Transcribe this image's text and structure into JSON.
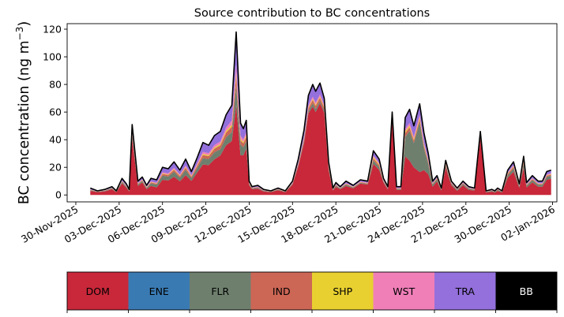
{
  "chart_data": {
    "type": "area",
    "stacked": true,
    "title": "Source contribution to BC concentrations",
    "ylabel_main": "BC concentration (ng m",
    "ylabel_sup": "−3",
    "ylabel_close": ")",
    "xlabel": "",
    "ylim": [
      -5,
      124
    ],
    "yticks": [
      0,
      20,
      40,
      60,
      80,
      100,
      120
    ],
    "xlim": [
      -0.6,
      33.3
    ],
    "xticks": [
      {
        "day": 0,
        "label": "30-Nov-2025"
      },
      {
        "day": 3,
        "label": "03-Dec-2025"
      },
      {
        "day": 6,
        "label": "06-Dec-2025"
      },
      {
        "day": 9,
        "label": "09-Dec-2025"
      },
      {
        "day": 12,
        "label": "12-Dec-2025"
      },
      {
        "day": 15,
        "label": "15-Dec-2025"
      },
      {
        "day": 18,
        "label": "18-Dec-2025"
      },
      {
        "day": 21,
        "label": "21-Dec-2025"
      },
      {
        "day": 24,
        "label": "24-Dec-2025"
      },
      {
        "day": 27,
        "label": "27-Dec-2025"
      },
      {
        "day": 30,
        "label": "30-Dec-2025"
      },
      {
        "day": 33,
        "label": "02-Jan-2026"
      }
    ],
    "x_days": [
      1.0,
      1.5,
      2.0,
      2.5,
      2.8,
      3.2,
      3.5,
      3.7,
      3.9,
      4.3,
      4.6,
      4.9,
      5.2,
      5.6,
      6.0,
      6.4,
      6.8,
      7.2,
      7.6,
      8.0,
      8.4,
      8.8,
      9.2,
      9.6,
      10.0,
      10.4,
      10.8,
      11.1,
      11.4,
      11.6,
      11.8,
      12.0,
      12.2,
      12.6,
      13.0,
      13.5,
      14.0,
      14.5,
      15.0,
      15.4,
      15.8,
      16.1,
      16.4,
      16.6,
      16.9,
      17.2,
      17.5,
      17.8,
      18.0,
      18.3,
      18.7,
      19.2,
      19.7,
      20.2,
      20.6,
      21.0,
      21.3,
      21.6,
      21.9,
      22.2,
      22.5,
      22.8,
      23.1,
      23.4,
      23.8,
      24.1,
      24.4,
      24.7,
      25.0,
      25.3,
      25.6,
      26.0,
      26.4,
      26.8,
      27.2,
      27.6,
      28.0,
      28.4,
      28.8,
      29.0,
      29.2,
      29.5,
      29.9,
      30.3,
      30.7,
      31.0,
      31.2,
      31.6,
      32.0,
      32.3,
      32.6,
      32.9
    ],
    "total": [
      5,
      3,
      4,
      6,
      3,
      12,
      8,
      4,
      51,
      10,
      13,
      7,
      12,
      11,
      20,
      19,
      24,
      18,
      26,
      17,
      27,
      38,
      36,
      43,
      46,
      58,
      65,
      118,
      52,
      48,
      54,
      10,
      6,
      7,
      4,
      3,
      5,
      3,
      10,
      26,
      47,
      72,
      80,
      75,
      81,
      70,
      24,
      5,
      9,
      6,
      10,
      7,
      11,
      10,
      32,
      26,
      12,
      6,
      60,
      6,
      6,
      56,
      62,
      50,
      66,
      45,
      30,
      10,
      14,
      5,
      25,
      10,
      5,
      10,
      6,
      5,
      46,
      3,
      4,
      3,
      5,
      3,
      18,
      24,
      8,
      28,
      9,
      14,
      10,
      10,
      17,
      18
    ],
    "series": [
      {
        "name": "DOM",
        "color": "#c8283a",
        "fractions": [
          0.6,
          0.7,
          0.65,
          0.7,
          0.65,
          0.7,
          0.65,
          0.65,
          0.8,
          0.65,
          0.7,
          0.6,
          0.55,
          0.5,
          0.55,
          0.55,
          0.55,
          0.55,
          0.55,
          0.6,
          0.6,
          0.58,
          0.6,
          0.6,
          0.62,
          0.62,
          0.6,
          0.55,
          0.55,
          0.6,
          0.62,
          0.7,
          0.7,
          0.65,
          0.65,
          0.7,
          0.7,
          0.65,
          0.75,
          0.8,
          0.8,
          0.82,
          0.8,
          0.8,
          0.82,
          0.85,
          0.75,
          0.65,
          0.65,
          0.7,
          0.65,
          0.7,
          0.75,
          0.75,
          0.7,
          0.7,
          0.75,
          0.65,
          0.9,
          0.6,
          0.6,
          0.5,
          0.4,
          0.4,
          0.25,
          0.4,
          0.5,
          0.6,
          0.7,
          0.65,
          0.8,
          0.7,
          0.6,
          0.7,
          0.6,
          0.65,
          0.9,
          0.6,
          0.6,
          0.55,
          0.6,
          0.6,
          0.7,
          0.7,
          0.65,
          0.7,
          0.6,
          0.65,
          0.6,
          0.6,
          0.65,
          0.65
        ]
      },
      {
        "name": "ENE",
        "color": "#3a7ab3",
        "fractions": [
          0.0,
          0.0,
          0.0,
          0.0,
          0.0,
          0.0,
          0.0,
          0.0,
          0.0,
          0.0,
          0.0,
          0.0,
          0.0,
          0.0,
          0.0,
          0.0,
          0.0,
          0.0,
          0.0,
          0.0,
          0.0,
          0.0,
          0.0,
          0.0,
          0.0,
          0.0,
          0.0,
          0.0,
          0.0,
          0.0,
          0.0,
          0.0,
          0.0,
          0.0,
          0.0,
          0.0,
          0.0,
          0.0,
          0.0,
          0.0,
          0.0,
          0.0,
          0.0,
          0.0,
          0.0,
          0.0,
          0.0,
          0.0,
          0.0,
          0.0,
          0.0,
          0.0,
          0.0,
          0.0,
          0.0,
          0.0,
          0.0,
          0.0,
          0.0,
          0.0,
          0.0,
          0.0,
          0.0,
          0.0,
          0.0,
          0.0,
          0.0,
          0.0,
          0.0,
          0.0,
          0.0,
          0.0,
          0.0,
          0.0,
          0.0,
          0.0,
          0.0,
          0.0,
          0.0,
          0.0,
          0.0,
          0.0,
          0.0,
          0.0,
          0.0,
          0.0,
          0.0,
          0.0,
          0.0,
          0.0,
          0.0,
          0.0
        ]
      },
      {
        "name": "FLR",
        "color": "#6e7f6e",
        "fractions": [
          0.1,
          0.08,
          0.1,
          0.08,
          0.1,
          0.08,
          0.1,
          0.1,
          0.05,
          0.1,
          0.08,
          0.12,
          0.15,
          0.18,
          0.15,
          0.15,
          0.15,
          0.15,
          0.15,
          0.12,
          0.12,
          0.12,
          0.12,
          0.12,
          0.1,
          0.1,
          0.1,
          0.12,
          0.15,
          0.12,
          0.1,
          0.08,
          0.08,
          0.1,
          0.1,
          0.08,
          0.08,
          0.1,
          0.05,
          0.03,
          0.03,
          0.02,
          0.03,
          0.03,
          0.02,
          0.02,
          0.05,
          0.1,
          0.1,
          0.08,
          0.1,
          0.08,
          0.05,
          0.05,
          0.08,
          0.08,
          0.05,
          0.1,
          0.02,
          0.12,
          0.12,
          0.25,
          0.35,
          0.35,
          0.55,
          0.35,
          0.25,
          0.15,
          0.1,
          0.12,
          0.05,
          0.1,
          0.15,
          0.1,
          0.15,
          0.12,
          0.02,
          0.15,
          0.15,
          0.18,
          0.15,
          0.15,
          0.1,
          0.1,
          0.12,
          0.1,
          0.15,
          0.12,
          0.15,
          0.15,
          0.12,
          0.12
        ]
      },
      {
        "name": "IND",
        "color": "#cc6655",
        "fractions": [
          0.05,
          0.04,
          0.05,
          0.04,
          0.05,
          0.04,
          0.05,
          0.05,
          0.03,
          0.05,
          0.04,
          0.06,
          0.06,
          0.06,
          0.06,
          0.06,
          0.06,
          0.06,
          0.06,
          0.06,
          0.06,
          0.06,
          0.06,
          0.06,
          0.06,
          0.06,
          0.06,
          0.06,
          0.06,
          0.06,
          0.06,
          0.05,
          0.05,
          0.05,
          0.05,
          0.04,
          0.04,
          0.05,
          0.04,
          0.03,
          0.03,
          0.03,
          0.03,
          0.03,
          0.03,
          0.03,
          0.04,
          0.05,
          0.05,
          0.04,
          0.05,
          0.04,
          0.04,
          0.04,
          0.05,
          0.05,
          0.04,
          0.05,
          0.02,
          0.05,
          0.05,
          0.05,
          0.04,
          0.04,
          0.03,
          0.04,
          0.05,
          0.05,
          0.05,
          0.05,
          0.04,
          0.05,
          0.05,
          0.05,
          0.05,
          0.05,
          0.02,
          0.05,
          0.05,
          0.05,
          0.05,
          0.05,
          0.05,
          0.05,
          0.05,
          0.05,
          0.05,
          0.05,
          0.05,
          0.05,
          0.05,
          0.05
        ]
      },
      {
        "name": "SHP",
        "color": "#e8d030",
        "fractions": [
          0.02,
          0.02,
          0.02,
          0.02,
          0.02,
          0.02,
          0.02,
          0.02,
          0.01,
          0.02,
          0.02,
          0.02,
          0.02,
          0.02,
          0.02,
          0.02,
          0.02,
          0.02,
          0.02,
          0.02,
          0.02,
          0.02,
          0.02,
          0.02,
          0.02,
          0.02,
          0.02,
          0.02,
          0.02,
          0.02,
          0.02,
          0.02,
          0.02,
          0.02,
          0.02,
          0.02,
          0.02,
          0.02,
          0.02,
          0.01,
          0.01,
          0.01,
          0.01,
          0.01,
          0.01,
          0.01,
          0.02,
          0.02,
          0.02,
          0.02,
          0.02,
          0.02,
          0.02,
          0.02,
          0.03,
          0.03,
          0.02,
          0.02,
          0.01,
          0.02,
          0.02,
          0.02,
          0.02,
          0.02,
          0.02,
          0.02,
          0.02,
          0.02,
          0.02,
          0.02,
          0.02,
          0.02,
          0.02,
          0.02,
          0.02,
          0.02,
          0.01,
          0.02,
          0.02,
          0.02,
          0.02,
          0.02,
          0.02,
          0.02,
          0.02,
          0.02,
          0.02,
          0.02,
          0.02,
          0.02,
          0.02,
          0.02
        ]
      },
      {
        "name": "WST",
        "color": "#f07fb8",
        "fractions": [
          0.03,
          0.02,
          0.03,
          0.02,
          0.03,
          0.02,
          0.03,
          0.03,
          0.02,
          0.03,
          0.03,
          0.04,
          0.04,
          0.04,
          0.04,
          0.04,
          0.04,
          0.04,
          0.04,
          0.04,
          0.04,
          0.04,
          0.04,
          0.04,
          0.04,
          0.04,
          0.05,
          0.05,
          0.04,
          0.04,
          0.04,
          0.03,
          0.03,
          0.03,
          0.03,
          0.03,
          0.03,
          0.03,
          0.03,
          0.02,
          0.02,
          0.02,
          0.02,
          0.02,
          0.02,
          0.02,
          0.03,
          0.03,
          0.03,
          0.03,
          0.03,
          0.03,
          0.03,
          0.03,
          0.03,
          0.03,
          0.03,
          0.03,
          0.02,
          0.03,
          0.03,
          0.03,
          0.03,
          0.03,
          0.03,
          0.03,
          0.03,
          0.03,
          0.03,
          0.03,
          0.02,
          0.03,
          0.03,
          0.03,
          0.03,
          0.03,
          0.02,
          0.03,
          0.03,
          0.03,
          0.03,
          0.03,
          0.03,
          0.03,
          0.03,
          0.03,
          0.03,
          0.03,
          0.03,
          0.03,
          0.03,
          0.03
        ]
      },
      {
        "name": "TRA",
        "color": "#9370db",
        "fractions": [
          0.2,
          0.14,
          0.15,
          0.14,
          0.15,
          0.14,
          0.15,
          0.15,
          0.09,
          0.15,
          0.13,
          0.16,
          0.18,
          0.2,
          0.18,
          0.18,
          0.18,
          0.18,
          0.18,
          0.16,
          0.16,
          0.18,
          0.16,
          0.16,
          0.16,
          0.16,
          0.17,
          0.2,
          0.18,
          0.16,
          0.16,
          0.12,
          0.12,
          0.15,
          0.15,
          0.13,
          0.13,
          0.15,
          0.11,
          0.11,
          0.11,
          0.1,
          0.11,
          0.11,
          0.1,
          0.07,
          0.11,
          0.15,
          0.15,
          0.13,
          0.15,
          0.13,
          0.11,
          0.11,
          0.11,
          0.11,
          0.11,
          0.15,
          0.03,
          0.18,
          0.18,
          0.15,
          0.16,
          0.16,
          0.12,
          0.16,
          0.15,
          0.15,
          0.1,
          0.13,
          0.07,
          0.1,
          0.15,
          0.1,
          0.15,
          0.13,
          0.03,
          0.15,
          0.15,
          0.17,
          0.15,
          0.15,
          0.1,
          0.1,
          0.13,
          0.1,
          0.15,
          0.13,
          0.15,
          0.15,
          0.13,
          0.13
        ]
      }
    ],
    "legend_position": "bottom",
    "legend": [
      {
        "label": "DOM",
        "color": "#c8283a",
        "text_color": "#000000"
      },
      {
        "label": "ENE",
        "color": "#3a7ab3",
        "text_color": "#000000"
      },
      {
        "label": "FLR",
        "color": "#6e7f6e",
        "text_color": "#000000"
      },
      {
        "label": "IND",
        "color": "#cc6655",
        "text_color": "#000000"
      },
      {
        "label": "SHP",
        "color": "#e8d030",
        "text_color": "#000000"
      },
      {
        "label": "WST",
        "color": "#f07fb8",
        "text_color": "#000000"
      },
      {
        "label": "TRA",
        "color": "#9370db",
        "text_color": "#000000"
      },
      {
        "label": "BB",
        "color": "#000000",
        "text_color": "#ffffff"
      }
    ],
    "total_line_color": "#000000"
  }
}
